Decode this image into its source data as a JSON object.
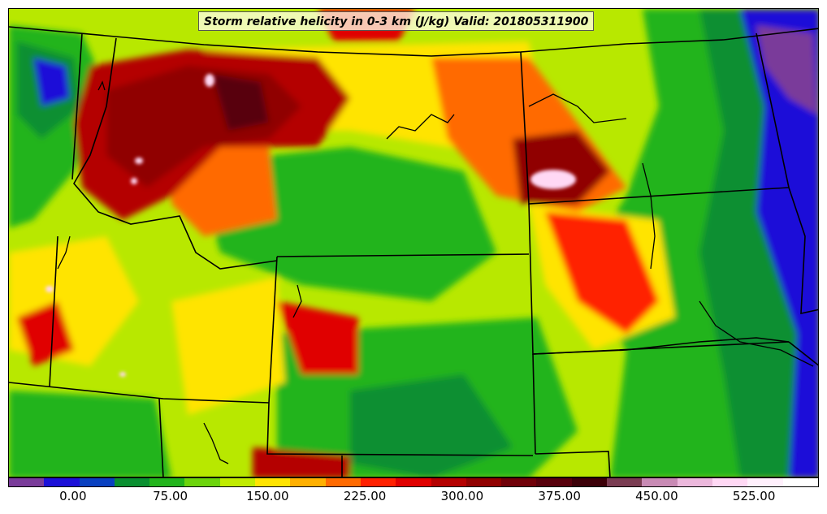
{
  "title": "Storm relative helicity in 0-3 km (J/kg) Valid: 201805311900",
  "colorbar": {
    "colors": [
      "#7a3b9a",
      "#1c10d8",
      "#0a40c0",
      "#0a8f30",
      "#22b41c",
      "#6cd40c",
      "#c0ec00",
      "#ffe400",
      "#ffb000",
      "#ff6a00",
      "#ff2000",
      "#e00000",
      "#b40000",
      "#900000",
      "#700008",
      "#58000c",
      "#3c0008",
      "#7a3c52",
      "#c88ab4",
      "#ecb8dc",
      "#ffd8f4",
      "#fff0fc",
      "#ffffff"
    ],
    "tick_labels": [
      "0.00",
      "75.00",
      "150.00",
      "225.00",
      "300.00",
      "375.00",
      "450.00",
      "525.00"
    ],
    "tick_values": [
      0,
      75,
      150,
      225,
      300,
      375,
      450,
      525
    ],
    "min": -50,
    "max": 575
  },
  "field_colors": {
    "very_low": "#1c10d8",
    "low": "#0a8f30",
    "mid_low": "#22b41c",
    "mid": "#c0ec00",
    "mid_high": "#ffe400",
    "high": "#ff6a00",
    "very_high": "#e00000",
    "extreme": "#900000",
    "peak": "#58000c",
    "max": "#ffd8f4",
    "boundary": "#000000"
  }
}
